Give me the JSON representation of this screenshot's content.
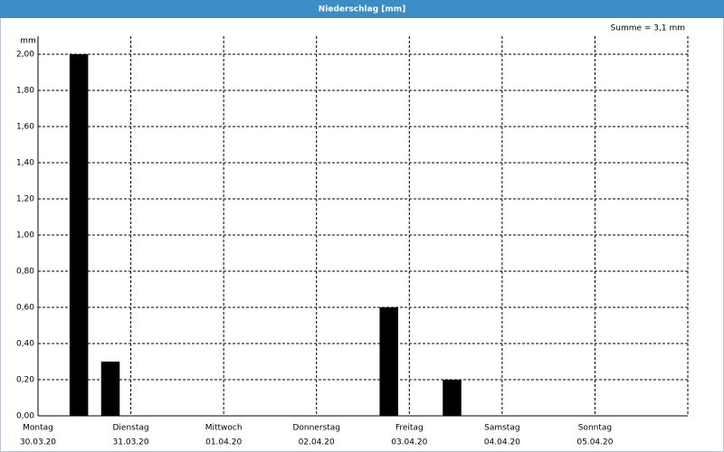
{
  "chart_data": {
    "type": "bar",
    "title": "Niederschlag [mm]",
    "annotation": "Summe = 3,1 mm",
    "y_unit": "mm",
    "x": [
      0.44,
      0.78,
      3.78,
      4.46
    ],
    "values": [
      2.0,
      0.3,
      0.6,
      0.2
    ],
    "color": "#000000",
    "xlim": [
      0,
      7
    ],
    "xticks": [
      {
        "value": 0,
        "label": "Montag"
      },
      {
        "value": 1,
        "label": "Dienstag"
      },
      {
        "value": 2,
        "label": "Mittwoch"
      },
      {
        "value": 3,
        "label": "Donnerstag"
      },
      {
        "value": 4,
        "label": "Freitag"
      },
      {
        "value": 5,
        "label": "Samstag"
      },
      {
        "value": 6,
        "label": "Sonntag"
      }
    ],
    "xtick_dates": [
      "30.03.20",
      "31.03.20",
      "01.04.20",
      "02.04.20",
      "03.04.20",
      "04.04.20",
      "05.04.20"
    ],
    "ylim": [
      0,
      2.1
    ],
    "yticks": [
      {
        "value": 0,
        "label": "0,00"
      },
      {
        "value": 0.2,
        "label": "0,20"
      },
      {
        "value": 0.4,
        "label": "0,40"
      },
      {
        "value": 0.6,
        "label": "0,60"
      },
      {
        "value": 0.8,
        "label": "0,80"
      },
      {
        "value": 1.0,
        "label": "1,00"
      },
      {
        "value": 1.2,
        "label": "1,20"
      },
      {
        "value": 1.4,
        "label": "1,40"
      },
      {
        "value": 1.6,
        "label": "1,60"
      },
      {
        "value": 1.8,
        "label": "1,80"
      },
      {
        "value": 2.0,
        "label": "2,00"
      }
    ],
    "grid": true
  }
}
